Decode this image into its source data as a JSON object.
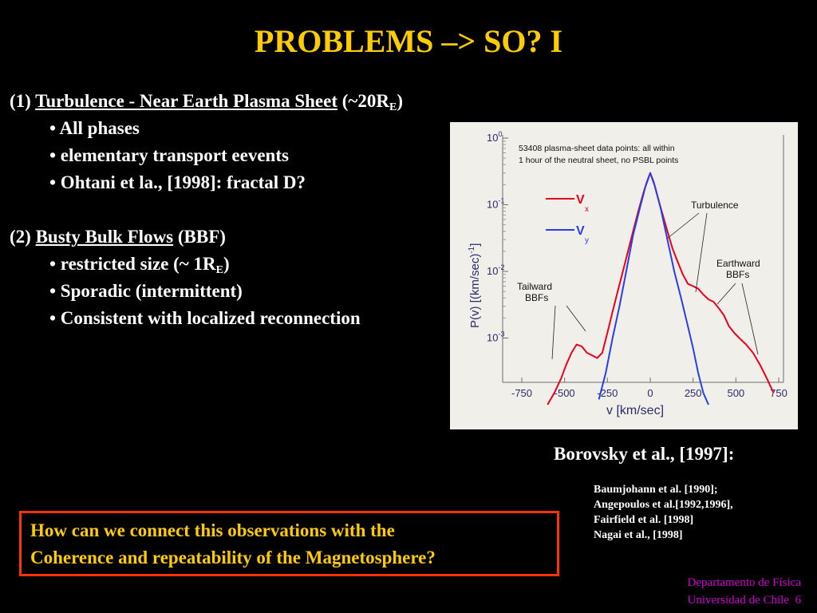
{
  "title": "PROBLEMS –> SO?  I",
  "section1": {
    "prefix": "(1) ",
    "heading": "Turbulence - Near Earth Plasma Sheet",
    "suffix_pre": " (~20R",
    "suffix_sub": "E",
    "suffix_post": ")",
    "bullets": [
      "• All phases",
      "• elementary transport eevents",
      "• Ohtani et la., [1998]: fractal D?"
    ]
  },
  "section2": {
    "prefix": "(2) ",
    "heading": "Busty Bulk Flows",
    "suffix": " (BBF)",
    "bullet1_pre": "• restricted size (~ 1R",
    "bullet1_sub": "E",
    "bullet1_post": ")",
    "bullets": [
      "• Sporadic (intermittent)",
      "• Consistent with localized reconnection"
    ]
  },
  "figure": {
    "note_line1": "53408 plasma-sheet data points: all within",
    "note_line2": "1 hour of the neutral sheet, no PSBL points",
    "legend": [
      {
        "label": "V",
        "sub": "x",
        "color": "#E8001A"
      },
      {
        "label": "V",
        "sub": "y",
        "color": "#2A3DE8"
      }
    ],
    "annotations": {
      "turbulence": "Turbulence",
      "earthward_1": "Earthward",
      "earthward_2": "BBFs",
      "tailward_1": "Tailward",
      "tailward_2": "BBFs"
    },
    "y_axis_label": "P(v)   [(km/sec)",
    "y_axis_exp": "-1",
    "y_axis_close": "]",
    "x_axis_label": "v   [km/sec]",
    "x_ticks": [
      "-750",
      "-500",
      "-250",
      "0",
      "250",
      "500",
      "750"
    ],
    "y_ticks": [
      {
        "base": "10",
        "exp": "0"
      },
      {
        "base": "10",
        "exp": "-1"
      },
      {
        "base": "10",
        "exp": "-2"
      },
      {
        "base": "10",
        "exp": "-3"
      }
    ]
  },
  "chart_data": {
    "type": "line",
    "xlabel": "v [km/sec]",
    "ylabel": "P(v) [(km/sec)^-1]",
    "xlim": [
      -750,
      750
    ],
    "y_scale": "log",
    "ylim": [
      0.0001,
      1
    ],
    "series": [
      {
        "name": "Vx",
        "color": "#E8001A",
        "x": [
          -600,
          -560,
          -520,
          -490,
          -460,
          -430,
          -400,
          -370,
          -340,
          -310,
          -280,
          -250,
          -220,
          -190,
          -160,
          -130,
          -100,
          -70,
          -40,
          -20,
          0,
          20,
          40,
          70,
          100,
          130,
          160,
          190,
          220,
          250,
          280,
          310,
          340,
          370,
          400,
          430,
          460,
          490,
          520,
          560,
          600,
          640,
          680,
          720
        ],
        "y": [
          0.0001,
          0.00015,
          0.00025,
          0.0004,
          0.0006,
          0.0008,
          0.00075,
          0.0006,
          0.00055,
          0.0005,
          0.0006,
          0.0012,
          0.0025,
          0.005,
          0.01,
          0.02,
          0.04,
          0.08,
          0.15,
          0.22,
          0.3,
          0.22,
          0.14,
          0.075,
          0.04,
          0.022,
          0.014,
          0.009,
          0.0065,
          0.006,
          0.0055,
          0.0045,
          0.0038,
          0.0035,
          0.0028,
          0.0022,
          0.0015,
          0.0012,
          0.001,
          0.0008,
          0.0006,
          0.0004,
          0.00025,
          0.00015
        ]
      },
      {
        "name": "Vy",
        "color": "#2A3DE8",
        "x": [
          -300,
          -260,
          -220,
          -180,
          -140,
          -100,
          -60,
          -30,
          0,
          30,
          60,
          100,
          140,
          180,
          220,
          250,
          280,
          310,
          340
        ],
        "y": [
          0.00012,
          0.0003,
          0.001,
          0.003,
          0.01,
          0.035,
          0.09,
          0.18,
          0.3,
          0.18,
          0.09,
          0.03,
          0.01,
          0.004,
          0.0015,
          0.0007,
          0.0003,
          0.00015,
          0.0001
        ]
      }
    ]
  },
  "caption": "Borovsky et al., [1997]:",
  "references": [
    "Baumjohann et al. [1990];",
    "Angepoulos et al.[1992,1996],",
    "Fairfield et al. [1998]",
    "Nagai et al., [1998]"
  ],
  "question": [
    "How can we connect this observations with the",
    "Coherence and repeatability of the Magnetosphere?"
  ],
  "footer": {
    "line1": "Departamento de Física",
    "line2": "Universidad de Chile",
    "page": "6"
  },
  "colors": {
    "title": "#FFCC00",
    "question_text": "#FFCC00",
    "question_border": "#FF3300",
    "footer": "#CC00CC",
    "background": "#000000"
  }
}
